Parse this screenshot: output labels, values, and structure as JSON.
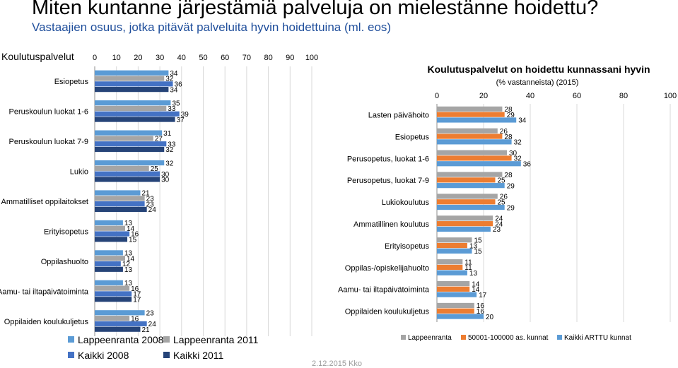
{
  "title": "Miten kuntanne järjestämiä palveluja on mielestänne hoidettu?",
  "subtitle": "Vastaajien osuus, jotka pitävät palveluita hyvin hoidettuina (ml. eos)",
  "footer": "2.12.2015 Kko",
  "colors": {
    "lpr2008": "#5b9bd5",
    "lpr2011": "#a5a5a5",
    "kaikki2008": "#4472c4",
    "kaikki2011": "#264478",
    "lappeenranta": "#a5a5a5",
    "kunnat": "#ed7d31",
    "arttu": "#5b9bd5"
  },
  "chart_data": [
    {
      "type": "bar",
      "orientation": "horizontal",
      "title": "Koulutuspalvelut",
      "categories": [
        "Esiopetus",
        "Peruskoulun luokat 1-6",
        "Peruskoulun luokat 7-9",
        "Lukio",
        "Ammatilliset oppilaitokset",
        "Erityisopetus",
        "Oppilashuolto",
        "Aamu- tai iltapäivätoiminta",
        "Oppilaiden koulukuljetus"
      ],
      "xlim": [
        0,
        100
      ],
      "xticks": [
        0,
        10,
        20,
        30,
        40,
        50,
        60,
        70,
        80,
        90,
        100
      ],
      "grid": true,
      "legend_position": "bottom",
      "series": [
        {
          "name": "Lappeenranta 2008",
          "values": [
            34,
            35,
            31,
            32,
            21,
            13,
            13,
            13,
            23
          ]
        },
        {
          "name": "Lappeenranta 2011",
          "values": [
            32,
            33,
            27,
            25,
            23,
            14,
            14,
            16,
            16
          ]
        },
        {
          "name": "Kaikki 2008",
          "values": [
            36,
            39,
            33,
            30,
            23,
            16,
            12,
            17,
            24
          ]
        },
        {
          "name": "Kaikki  2011",
          "values": [
            34,
            37,
            32,
            30,
            24,
            15,
            13,
            17,
            21
          ]
        }
      ]
    },
    {
      "type": "bar",
      "orientation": "horizontal",
      "title": "Koulutuspalvelut on hoidettu kunnassani hyvin",
      "subtitle": "(% vastanneista) (2015)",
      "categories": [
        "Lasten päivähoito",
        "Esiopetus",
        "Perusopetus, luokat 1-6",
        "Perusopetus, luokat 7-9",
        "Lukiokoulutus",
        "Ammatillinen koulutus",
        "Erityisopetus",
        "Oppilas-/opiskelijahuolto",
        "Aamu- tai iltapäivätoiminta",
        "Oppilaiden koulukuljetus"
      ],
      "xlim": [
        0,
        100
      ],
      "xticks": [
        0,
        20,
        40,
        60,
        80,
        100
      ],
      "grid": true,
      "legend_position": "bottom",
      "series": [
        {
          "name": "Lappeenranta",
          "values": [
            28,
            26,
            30,
            28,
            26,
            24,
            15,
            11,
            14,
            16
          ]
        },
        {
          "name": "50001-100000 as. kunnat",
          "values": [
            29,
            28,
            32,
            25,
            25,
            24,
            13,
            11,
            14,
            16
          ]
        },
        {
          "name": "Kaikki ARTTU kunnat",
          "values": [
            34,
            32,
            36,
            29,
            29,
            23,
            15,
            13,
            17,
            20
          ]
        }
      ]
    }
  ]
}
